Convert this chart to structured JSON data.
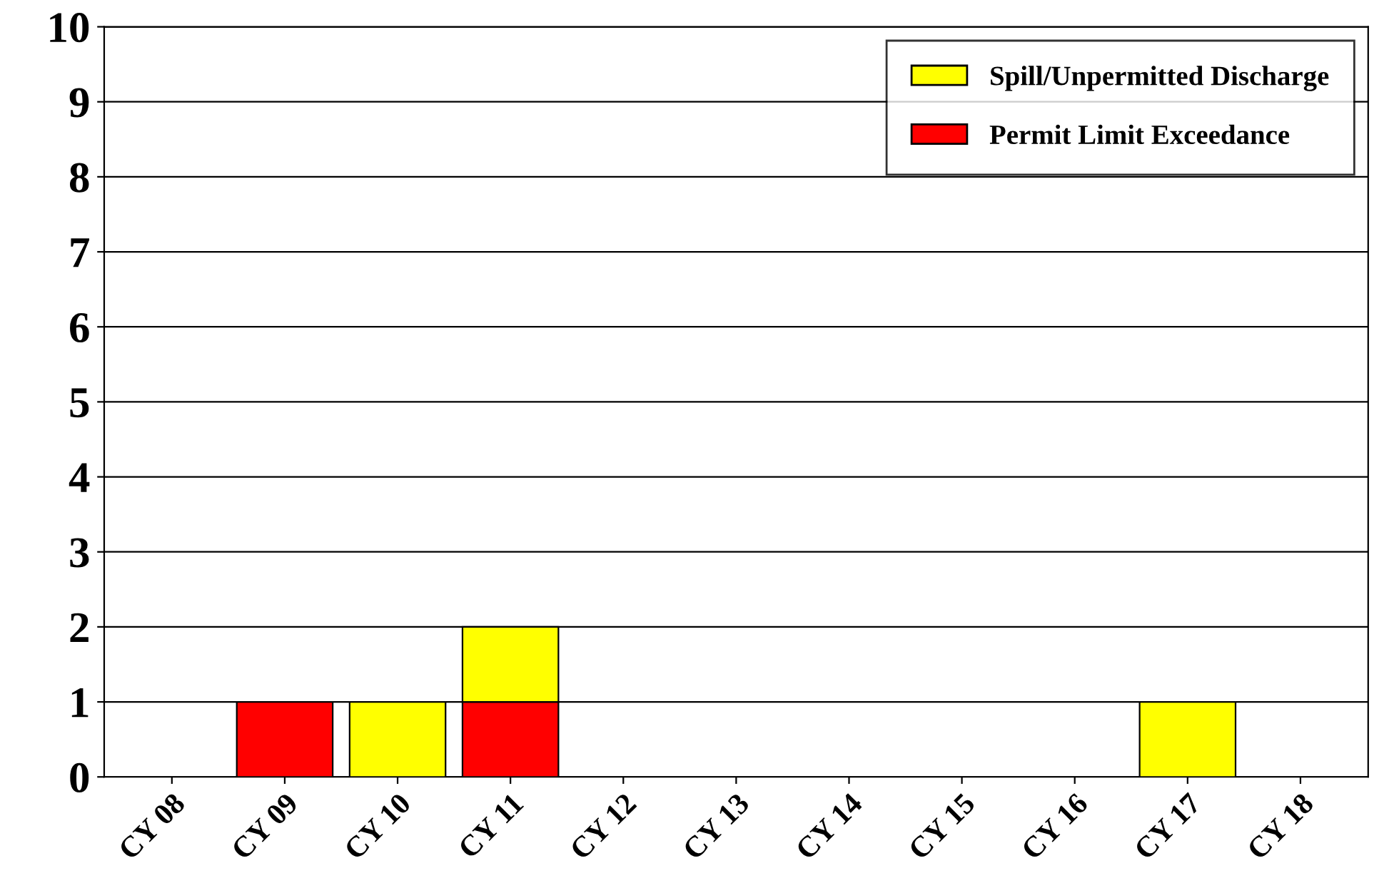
{
  "chart_data": {
    "type": "bar",
    "stacked": true,
    "categories": [
      "CY 08",
      "CY 09",
      "CY 10",
      "CY 11",
      "CY 12",
      "CY 13",
      "CY 14",
      "CY 15",
      "CY 16",
      "CY 17",
      "CY 18"
    ],
    "series": [
      {
        "name": "Permit Limit Exceedance",
        "color": "#ff0000",
        "values": [
          0,
          1,
          0,
          1,
          0,
          0,
          0,
          0,
          0,
          0,
          0
        ]
      },
      {
        "name": "Spill/Unpermitted Discharge",
        "color": "#ffff00",
        "values": [
          0,
          0,
          1,
          1,
          0,
          0,
          0,
          0,
          0,
          1,
          0
        ]
      }
    ],
    "ylim": [
      0,
      10
    ],
    "yticks": [
      0,
      1,
      2,
      3,
      4,
      5,
      6,
      7,
      8,
      9,
      10
    ],
    "grid": "y",
    "legend": "top right"
  }
}
